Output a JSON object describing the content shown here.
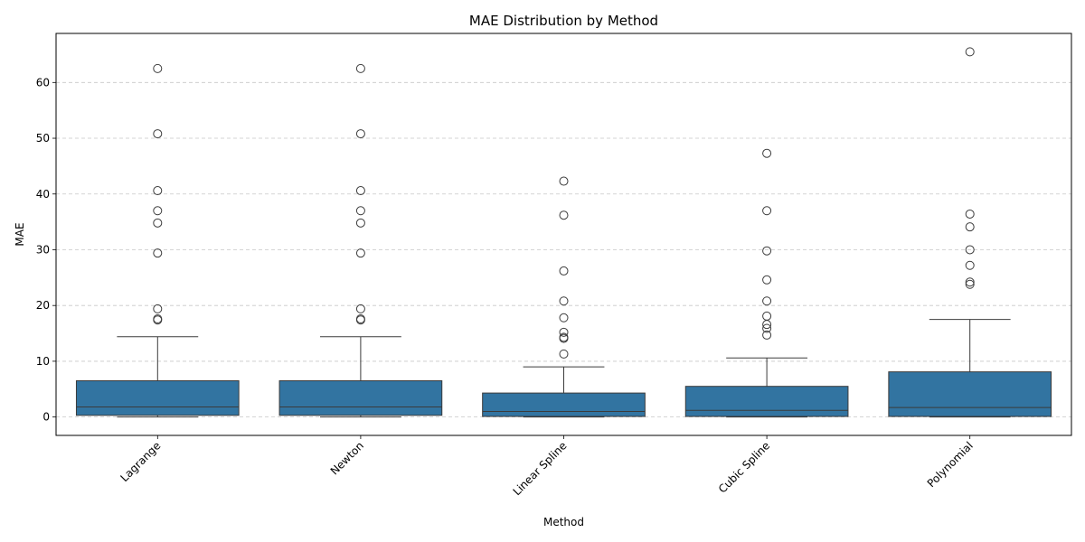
{
  "chart_data": {
    "type": "box",
    "title": "MAE Distribution by Method",
    "xlabel": "Method",
    "ylabel": "MAE",
    "ylim": [
      -3.3,
      68.8
    ],
    "yticks": [
      0,
      10,
      20,
      30,
      40,
      50,
      60
    ],
    "grid": "y-dashed",
    "box_color": "#3274a1",
    "categories": [
      "Lagrange",
      "Newton",
      "Linear Spline",
      "Cubic Spline",
      "Polynomial"
    ],
    "boxes": [
      {
        "whisker_low": 0.0,
        "q1": 0.3,
        "median": 1.8,
        "q3": 6.5,
        "whisker_high": 14.4,
        "outliers": [
          17.4,
          17.6,
          19.4,
          29.4,
          34.8,
          37.0,
          40.6,
          50.8,
          62.5
        ]
      },
      {
        "whisker_low": 0.0,
        "q1": 0.3,
        "median": 1.8,
        "q3": 6.5,
        "whisker_high": 14.4,
        "outliers": [
          17.4,
          17.6,
          19.4,
          29.4,
          34.8,
          37.0,
          40.6,
          50.8,
          62.5
        ]
      },
      {
        "whisker_low": 0.0,
        "q1": 0.1,
        "median": 1.0,
        "q3": 4.3,
        "whisker_high": 9.0,
        "outliers": [
          11.3,
          14.1,
          14.3,
          15.2,
          17.8,
          20.8,
          26.2,
          36.2,
          42.3
        ]
      },
      {
        "whisker_low": 0.0,
        "q1": 0.1,
        "median": 1.2,
        "q3": 5.5,
        "whisker_high": 10.6,
        "outliers": [
          14.7,
          15.9,
          16.6,
          18.1,
          20.8,
          24.6,
          29.8,
          37.0,
          47.3
        ]
      },
      {
        "whisker_low": 0.0,
        "q1": 0.1,
        "median": 1.7,
        "q3": 8.1,
        "whisker_high": 17.5,
        "outliers": [
          23.8,
          24.2,
          27.2,
          30.0,
          34.1,
          36.4,
          65.5
        ]
      }
    ]
  }
}
